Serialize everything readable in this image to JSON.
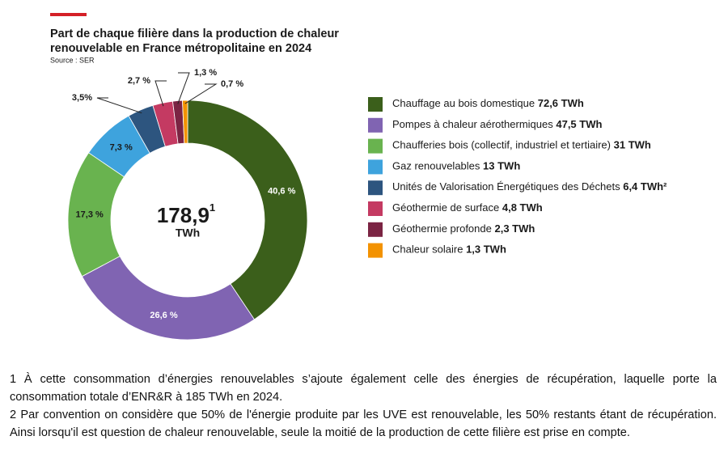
{
  "chart_data": {
    "type": "pie",
    "donut": true,
    "title": "Part de chaque filière dans la production de chaleur",
    "title_line2": "renouvelable en France métropolitaine en 2024",
    "source": "Source : SER",
    "categories": [
      "Chauffage au bois domestique",
      "Pompes à chaleur aérothermiques",
      "Chaufferies bois (collectif, industriel et tertiaire)",
      "Gaz renouvelables",
      "Unités de Valorisation Énergétiques des Déchets",
      "Géothermie de surface",
      "Géothermie profonde",
      "Chaleur solaire"
    ],
    "values": [
      40.6,
      26.6,
      17.3,
      7.3,
      3.5,
      2.7,
      1.3,
      0.7
    ],
    "value_labels": [
      "40,6 %",
      "26,6 %",
      "17,3 %",
      "7,3 %",
      "3,5%",
      "2,7 %",
      "1,3 %",
      "0,7 %"
    ],
    "colors": [
      "#3b5f1b",
      "#8064b2",
      "#69b34f",
      "#3ea3dd",
      "#2d557f",
      "#c43a62",
      "#7b2443",
      "#f39200"
    ],
    "energy": [
      72.6,
      47.5,
      31,
      13,
      6.4,
      4.8,
      2.3,
      1.3
    ],
    "energy_labels": [
      "72,6 TWh",
      "47,5 TWh",
      "31 TWh",
      "13 TWh",
      "6,4 TWh²",
      "4,8 TWh",
      "2,3 TWh",
      "1,3 TWh"
    ],
    "total": 178.9,
    "total_label": "178,9",
    "total_note": "1",
    "total_unit": "TWh"
  },
  "footnotes": [
    "1 À cette consommation d’énergies renouvelables s’ajoute également celle des énergies de récupération, laquelle porte la consommation totale d’ENR&R à 185 TWh en 2024.",
    "2 Par convention on considère que 50% de l'énergie produite par les UVE est renouvelable, les 50% restants étant de récupération. Ainsi lorsqu'il est question de chaleur renouvelable, seule la moitié de la production de cette filière est prise en compte."
  ]
}
